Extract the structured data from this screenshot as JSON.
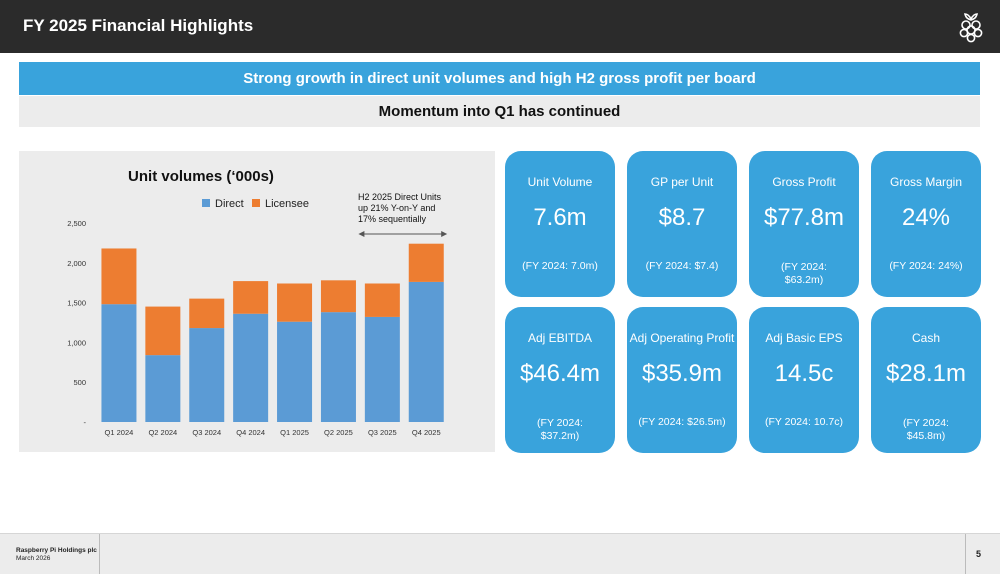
{
  "header": {
    "title": "FY 2025 Financial Highlights",
    "logo_icon": "raspberry-logo-icon"
  },
  "banner": {
    "headline": "Strong growth in direct unit volumes and high H2 gross profit per board",
    "subheadline": "Momentum into Q1 has continued"
  },
  "chart_data": {
    "type": "bar",
    "stacked": true,
    "title": "Unit volumes (‘000s)",
    "categories": [
      "Q1 2024",
      "Q2 2024",
      "Q3 2024",
      "Q4 2024",
      "Q1 2025",
      "Q2 2025",
      "Q3 2025",
      "Q4 2025"
    ],
    "series": [
      {
        "name": "Direct",
        "color": "#5b9bd5",
        "values": [
          1480,
          840,
          1180,
          1360,
          1260,
          1380,
          1320,
          1760
        ]
      },
      {
        "name": "Licensee",
        "color": "#ed7d31",
        "values": [
          700,
          610,
          370,
          410,
          480,
          400,
          420,
          480
        ]
      }
    ],
    "y_ticks": [
      "-",
      "500",
      "1,000",
      "1,500",
      "2,000",
      "2,500"
    ],
    "ylim": [
      0,
      2500
    ],
    "legend": "top-center",
    "grid": false,
    "annotation": {
      "lines": [
        "H2 2025 Direct Units",
        "up 21% Y-on-Y and",
        "17% sequentially"
      ],
      "span": [
        "Q3 2025",
        "Q4 2025"
      ]
    }
  },
  "kpis": [
    {
      "label": "Unit Volume",
      "value": "7.6m",
      "sub": [
        "(FY 2024: 7.0m)"
      ]
    },
    {
      "label": "GP per Unit",
      "value": "$8.7",
      "sub": [
        "(FY 2024: $7.4)"
      ]
    },
    {
      "label": "Gross Profit",
      "value": "$77.8m",
      "sub": [
        "(FY 2024:",
        "$63.2m)"
      ]
    },
    {
      "label": "Gross Margin",
      "value": "24%",
      "sub": [
        "(FY 2024: 24%)"
      ]
    },
    {
      "label": "Adj EBITDA",
      "value": "$46.4m",
      "sub": [
        "(FY 2024:",
        "$37.2m)"
      ]
    },
    {
      "label": "Adj Operating Profit",
      "value": "$35.9m",
      "sub": [
        "(FY 2024: $26.5m)"
      ]
    },
    {
      "label": "Adj Basic EPS",
      "value": "14.5c",
      "sub": [
        "(FY 2024: 10.7c)"
      ]
    },
    {
      "label": "Cash",
      "value": "$28.1m",
      "sub": [
        "(FY 2024:",
        "$45.8m)"
      ]
    }
  ],
  "footer": {
    "company": "Raspberry Pi Holdings plc",
    "date": "March 2026",
    "page": "5"
  }
}
